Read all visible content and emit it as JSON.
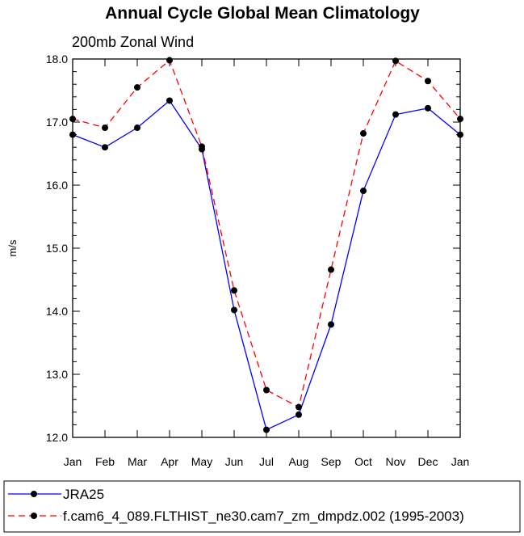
{
  "chart_data": {
    "type": "line",
    "title": "Annual Cycle Global Mean Climatology",
    "subtitle": "200mb Zonal Wind",
    "ylabel": "m/s",
    "xlabel": "",
    "categories": [
      "Jan",
      "Feb",
      "Mar",
      "Apr",
      "May",
      "Jun",
      "Jul",
      "Aug",
      "Sep",
      "Oct",
      "Nov",
      "Dec",
      "Jan"
    ],
    "ylim": [
      12.0,
      18.0
    ],
    "yticks": [
      "12.0",
      "13.0",
      "14.0",
      "15.0",
      "16.0",
      "17.0",
      "18.0"
    ],
    "grid": false,
    "legend_position": "bottom",
    "series": [
      {
        "name": "JRA25",
        "color": "#0000ff",
        "line_style": "solid",
        "values": [
          16.8,
          16.6,
          16.91,
          17.34,
          16.57,
          14.02,
          12.12,
          12.36,
          13.79,
          15.91,
          17.12,
          17.22,
          16.8
        ]
      },
      {
        "name": "f.cam6_4_089.FLTHIST_ne30.cam7_zm_dmpdz.002 (1995-2003)",
        "color": "#ff0000",
        "line_style": "dashed",
        "values": [
          17.05,
          16.91,
          17.55,
          17.98,
          16.61,
          14.33,
          12.75,
          12.48,
          14.66,
          16.82,
          17.97,
          17.65,
          17.05
        ]
      }
    ]
  }
}
